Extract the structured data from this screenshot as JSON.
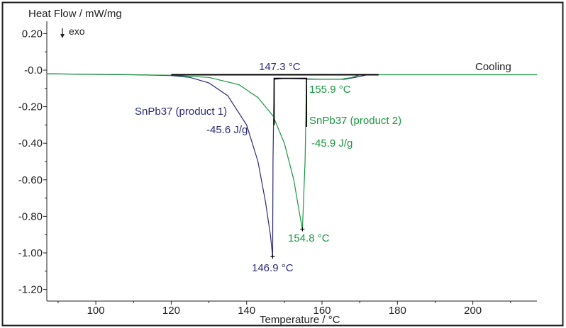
{
  "chart_data": {
    "type": "line",
    "ylabel": "Heat Flow / mW/mg",
    "xlabel": "Temperature / °C",
    "exo_label": "exo",
    "exo_icon": "arrow-down-icon",
    "xlim": [
      87,
      217
    ],
    "ylim": [
      -1.3,
      0.24
    ],
    "x_ticks": [
      100,
      120,
      140,
      160,
      180,
      200
    ],
    "x_tick_labels": [
      "100",
      "120",
      "140",
      "160",
      "180",
      "200"
    ],
    "y_ticks": [
      0.2,
      0.0,
      -0.2,
      -0.4,
      -0.6,
      -0.8,
      -1.0,
      -1.2
    ],
    "y_tick_labels": [
      "0.20",
      "-0.0",
      "-0.20",
      "-0.40",
      "-0.60",
      "-0.80",
      "-1.00",
      "-1.20"
    ],
    "grid": false,
    "series": [
      {
        "name": "SnPb37 (product 1)",
        "color": "#2b2a7a",
        "x": [
          87,
          110,
          120,
          125,
          130,
          135,
          140,
          143,
          145,
          146.3,
          146.9,
          147.0,
          147.3,
          150,
          160,
          166,
          170,
          172,
          175
        ],
        "y": [
          -0.02,
          -0.025,
          -0.03,
          -0.04,
          -0.07,
          -0.14,
          -0.3,
          -0.5,
          -0.72,
          -0.9,
          -1.02,
          -0.5,
          -0.05,
          -0.045,
          -0.05,
          -0.05,
          -0.035,
          -0.025,
          -0.025
        ]
      },
      {
        "name": "SnPb37 (product 2)",
        "color": "#1a9640",
        "x": [
          87,
          120,
          130,
          138,
          143,
          147,
          150,
          152.5,
          154,
          154.8,
          155.5,
          155.9,
          160,
          165,
          168,
          170,
          217
        ],
        "y": [
          -0.02,
          -0.028,
          -0.04,
          -0.08,
          -0.15,
          -0.25,
          -0.4,
          -0.6,
          -0.78,
          -0.87,
          -0.5,
          -0.05,
          -0.05,
          -0.05,
          -0.04,
          -0.025,
          -0.025
        ]
      }
    ],
    "annotations": {
      "onset1": "147.3 °C",
      "onset2": "155.9 °C",
      "peak1": "146.9 °C",
      "peak2": "154.8 °C",
      "enthalpy1": "-45.6 J/g",
      "enthalpy2": "-45.9 J/g",
      "series1_label": "SnPb37 (product 1)",
      "series2_label": "SnPb37 (product 2)",
      "segment_label": "Cooling",
      "annotation_color": "#000000"
    }
  }
}
